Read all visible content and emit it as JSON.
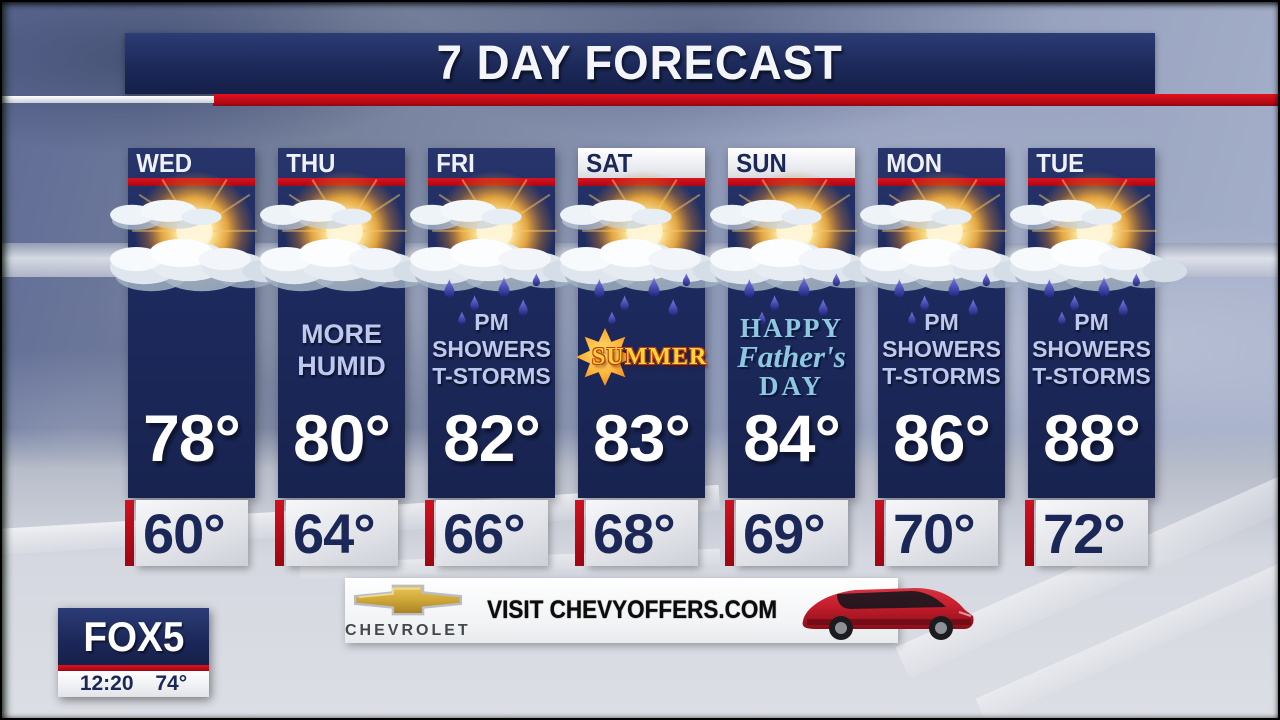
{
  "header": {
    "title": "7 DAY FORECAST"
  },
  "forecast": {
    "days": [
      {
        "day": "WED",
        "header_style": "navy",
        "icon": "sun-and-clouds",
        "condition_lines": [],
        "high": "78°",
        "low": "60°"
      },
      {
        "day": "THU",
        "header_style": "navy",
        "icon": "sun-and-clouds",
        "condition_lines": [
          "MORE",
          "HUMID"
        ],
        "high": "80°",
        "low": "64°"
      },
      {
        "day": "FRI",
        "header_style": "navy",
        "icon": "sun-clouds-rain",
        "condition_lines": [
          "PM",
          "SHOWERS",
          "T-STORMS"
        ],
        "high": "82°",
        "low": "66°"
      },
      {
        "day": "SAT",
        "header_style": "white",
        "icon": "sun-clouds-rain",
        "condition_lines": [],
        "badge": "SUMMER",
        "high": "83°",
        "low": "68°"
      },
      {
        "day": "SUN",
        "header_style": "white",
        "icon": "sun-clouds-rain",
        "condition_lines": [],
        "special_lines": [
          "HAPPY",
          "Father's",
          "DAY"
        ],
        "high": "84°",
        "low": "69°"
      },
      {
        "day": "MON",
        "header_style": "navy",
        "icon": "sun-clouds-rain",
        "condition_lines": [
          "PM",
          "SHOWERS",
          "T-STORMS"
        ],
        "high": "86°",
        "low": "70°"
      },
      {
        "day": "TUE",
        "header_style": "navy",
        "icon": "sun-clouds-rain",
        "condition_lines": [
          "PM",
          "SHOWERS",
          "T-STORMS"
        ],
        "high": "88°",
        "low": "72°"
      }
    ]
  },
  "ad": {
    "brand": "CHEVROLET",
    "message": "VISIT CHEVYOFFERS.COM",
    "vehicle": "red-suv"
  },
  "station": {
    "logo": "FOX5",
    "time": "12:20",
    "current_temp": "74°"
  },
  "colors": {
    "navy": "#1c2a5e",
    "accent_red": "#c30d1a",
    "condition_text": "#bdc9ef",
    "fathers_day_text": "#8ec7e0",
    "summer_text": "#ffd43d",
    "chevy_gold": "#cfa638",
    "suv_red": "#c41d2b"
  }
}
